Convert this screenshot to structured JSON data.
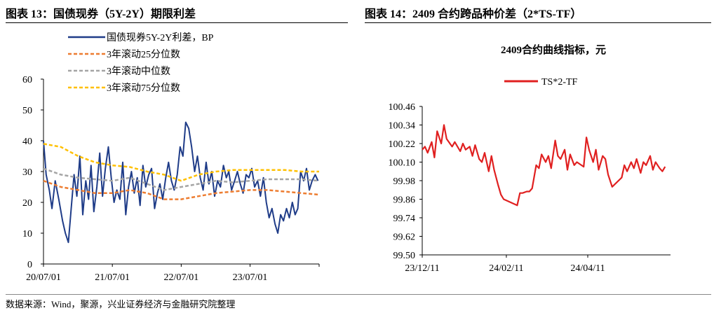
{
  "figure13": {
    "title": "图表 13：国债现券（5Y-2Y）期限利差"
  },
  "figure14": {
    "title": "图表 14：2409 合约跨品种价差（2*TS-TF）"
  },
  "source": "数据来源：Wind，聚源，兴业证券经济与金融研究院整理",
  "chart_data": [
    {
      "type": "line",
      "title": "",
      "xlabel": "",
      "ylabel": "",
      "ylim": [
        0,
        60
      ],
      "yticks": [
        0,
        10,
        20,
        30,
        40,
        50,
        60
      ],
      "xticks": [
        "20/07/01",
        "21/07/01",
        "22/07/01",
        "23/07/01"
      ],
      "legend_position": "top",
      "grid": false,
      "x_range": [
        "2020-07-01",
        "2024-07-01"
      ],
      "series": [
        {
          "name": "国债现券5Y-2Y利差，BP",
          "color": "#1f3c88",
          "x": [
            "2020-07-01",
            "2020-07-15",
            "2020-08-01",
            "2020-08-15",
            "2020-09-01",
            "2020-09-20",
            "2020-10-10",
            "2020-10-25",
            "2020-11-10",
            "2020-11-25",
            "2020-12-10",
            "2020-12-25",
            "2021-01-10",
            "2021-01-25",
            "2021-02-10",
            "2021-02-25",
            "2021-03-10",
            "2021-03-25",
            "2021-04-10",
            "2021-04-25",
            "2021-05-10",
            "2021-05-25",
            "2021-06-10",
            "2021-06-25",
            "2021-07-10",
            "2021-07-25",
            "2021-08-10",
            "2021-08-25",
            "2021-09-10",
            "2021-09-25",
            "2021-10-10",
            "2021-10-25",
            "2021-11-10",
            "2021-11-25",
            "2021-12-10",
            "2021-12-25",
            "2022-01-10",
            "2022-01-25",
            "2022-02-10",
            "2022-02-25",
            "2022-03-10",
            "2022-03-25",
            "2022-04-10",
            "2022-04-25",
            "2022-05-10",
            "2022-05-25",
            "2022-06-10",
            "2022-06-25",
            "2022-07-10",
            "2022-07-25",
            "2022-08-10",
            "2022-08-25",
            "2022-09-10",
            "2022-09-25",
            "2022-10-10",
            "2022-10-25",
            "2022-11-10",
            "2022-11-25",
            "2022-12-10",
            "2022-12-25",
            "2023-01-10",
            "2023-01-25",
            "2023-02-10",
            "2023-02-25",
            "2023-03-10",
            "2023-03-25",
            "2023-04-10",
            "2023-04-25",
            "2023-05-10",
            "2023-05-25",
            "2023-06-10",
            "2023-06-25",
            "2023-07-10",
            "2023-07-25",
            "2023-08-10",
            "2023-08-25",
            "2023-09-10",
            "2023-09-25",
            "2023-10-10",
            "2023-10-25",
            "2023-11-10",
            "2023-11-25",
            "2023-12-10",
            "2023-12-25",
            "2024-01-10",
            "2024-01-25",
            "2024-02-10",
            "2024-02-25",
            "2024-03-10",
            "2024-03-25",
            "2024-04-10",
            "2024-04-25",
            "2024-05-10",
            "2024-05-25",
            "2024-06-10",
            "2024-06-25"
          ],
          "values": [
            40,
            29,
            24,
            18,
            27,
            21,
            14,
            10,
            7,
            18,
            29,
            22,
            35,
            16,
            27,
            21,
            32,
            17,
            25,
            36,
            22,
            31,
            38,
            28,
            20,
            24,
            21,
            33,
            16,
            25,
            30,
            23,
            28,
            19,
            32,
            25,
            29,
            31,
            18,
            23,
            26,
            21,
            28,
            33,
            27,
            24,
            29,
            38,
            35,
            46,
            44,
            38,
            30,
            35,
            28,
            24,
            33,
            26,
            30,
            22,
            27,
            25,
            32,
            28,
            30,
            24,
            27,
            30,
            26,
            23,
            29,
            28,
            31,
            25,
            27,
            22,
            28,
            20,
            15,
            18,
            13,
            10,
            16,
            14,
            18,
            15,
            20,
            16,
            18,
            30,
            27,
            31,
            24,
            27,
            29,
            27
          ]
        },
        {
          "name": "3年滚动25分位数",
          "color": "#ed7d31",
          "x": [
            "2020-07-01",
            "2020-10-01",
            "2021-01-01",
            "2021-04-01",
            "2021-07-01",
            "2021-10-01",
            "2022-01-01",
            "2022-04-01",
            "2022-07-01",
            "2022-10-01",
            "2023-01-01",
            "2023-04-01",
            "2023-07-01",
            "2023-10-01",
            "2024-01-01",
            "2024-04-01",
            "2024-07-01"
          ],
          "values": [
            27,
            25,
            24,
            23,
            23,
            24,
            23,
            21,
            21,
            22,
            23,
            23.5,
            24,
            24,
            23.5,
            23,
            22.5
          ]
        },
        {
          "name": "3年滚动中位数",
          "color": "#a5a5a5",
          "x": [
            "2020-07-01",
            "2020-10-01",
            "2021-01-01",
            "2021-04-01",
            "2021-07-01",
            "2021-10-01",
            "2022-01-01",
            "2022-04-01",
            "2022-07-01",
            "2022-10-01",
            "2023-01-01",
            "2023-04-01",
            "2023-07-01",
            "2023-10-01",
            "2024-01-01",
            "2024-04-01",
            "2024-07-01"
          ],
          "values": [
            31,
            29,
            28,
            27.5,
            27,
            28,
            26,
            24,
            25,
            26,
            27,
            26.5,
            27,
            27.5,
            27.5,
            27.5,
            27
          ]
        },
        {
          "name": "3年滚动75分位数",
          "color": "#ffc000",
          "x": [
            "2020-07-01",
            "2020-10-01",
            "2021-01-01",
            "2021-04-01",
            "2021-07-01",
            "2021-10-01",
            "2022-01-01",
            "2022-04-01",
            "2022-07-01",
            "2022-10-01",
            "2023-01-01",
            "2023-04-01",
            "2023-07-01",
            "2023-10-01",
            "2024-01-01",
            "2024-04-01",
            "2024-07-01"
          ],
          "values": [
            39,
            38,
            35,
            33,
            32,
            31.5,
            30,
            29,
            27,
            29,
            30,
            30.5,
            30.5,
            30.5,
            30.5,
            30,
            30
          ]
        }
      ]
    },
    {
      "type": "line",
      "title": "2409合约曲线指标，元",
      "xlabel": "",
      "ylabel": "",
      "ylim": [
        99.5,
        100.46
      ],
      "yticks": [
        99.5,
        99.62,
        99.74,
        99.86,
        99.98,
        100.1,
        100.22,
        100.34,
        100.46
      ],
      "xticks": [
        "23/12/11",
        "24/02/11",
        "24/04/11"
      ],
      "legend_position": "top",
      "grid": false,
      "x_range": [
        "2023-12-11",
        "2024-06-11"
      ],
      "series": [
        {
          "name": "TS*2-TF",
          "color": "#e02020",
          "x": [
            "2023-12-11",
            "2023-12-13",
            "2023-12-15",
            "2023-12-18",
            "2023-12-20",
            "2023-12-22",
            "2023-12-25",
            "2023-12-27",
            "2023-12-29",
            "2024-01-02",
            "2024-01-04",
            "2024-01-08",
            "2024-01-10",
            "2024-01-12",
            "2024-01-15",
            "2024-01-17",
            "2024-01-19",
            "2024-01-22",
            "2024-01-24",
            "2024-01-26",
            "2024-01-29",
            "2024-01-31",
            "2024-02-02",
            "2024-02-05",
            "2024-02-07",
            "2024-02-09",
            "2024-02-19",
            "2024-02-21",
            "2024-02-23",
            "2024-02-26",
            "2024-02-28",
            "2024-03-01",
            "2024-03-04",
            "2024-03-06",
            "2024-03-08",
            "2024-03-11",
            "2024-03-13",
            "2024-03-15",
            "2024-03-18",
            "2024-03-20",
            "2024-03-22",
            "2024-03-25",
            "2024-03-27",
            "2024-03-29",
            "2024-04-01",
            "2024-04-03",
            "2024-04-08",
            "2024-04-10",
            "2024-04-12",
            "2024-04-15",
            "2024-04-17",
            "2024-04-19",
            "2024-04-22",
            "2024-04-24",
            "2024-04-26",
            "2024-04-29",
            "2024-05-06",
            "2024-05-08",
            "2024-05-10",
            "2024-05-13",
            "2024-05-15",
            "2024-05-17",
            "2024-05-20",
            "2024-05-22",
            "2024-05-24",
            "2024-05-27",
            "2024-05-29",
            "2024-05-31",
            "2024-06-03",
            "2024-06-05",
            "2024-06-07"
          ],
          "values": [
            100.18,
            100.2,
            100.16,
            100.23,
            100.13,
            100.3,
            100.22,
            100.34,
            100.25,
            100.2,
            100.23,
            100.17,
            100.22,
            100.18,
            100.2,
            100.14,
            100.21,
            100.12,
            100.1,
            100.16,
            100.04,
            100.14,
            100.05,
            99.95,
            99.89,
            99.86,
            99.82,
            99.9,
            99.9,
            99.91,
            99.91,
            99.93,
            100.08,
            100.06,
            100.15,
            100.1,
            100.14,
            100.06,
            100.24,
            100.14,
            100.12,
            100.18,
            100.05,
            100.15,
            100.08,
            100.1,
            100.07,
            100.26,
            100.18,
            100.1,
            100.18,
            100.05,
            100.14,
            100.12,
            100.02,
            99.94,
            100.0,
            100.08,
            100.04,
            100.1,
            100.06,
            100.12,
            100.03,
            100.1,
            100.08,
            100.14,
            100.05,
            100.1,
            100.06,
            100.04,
            100.07
          ]
        }
      ]
    }
  ]
}
